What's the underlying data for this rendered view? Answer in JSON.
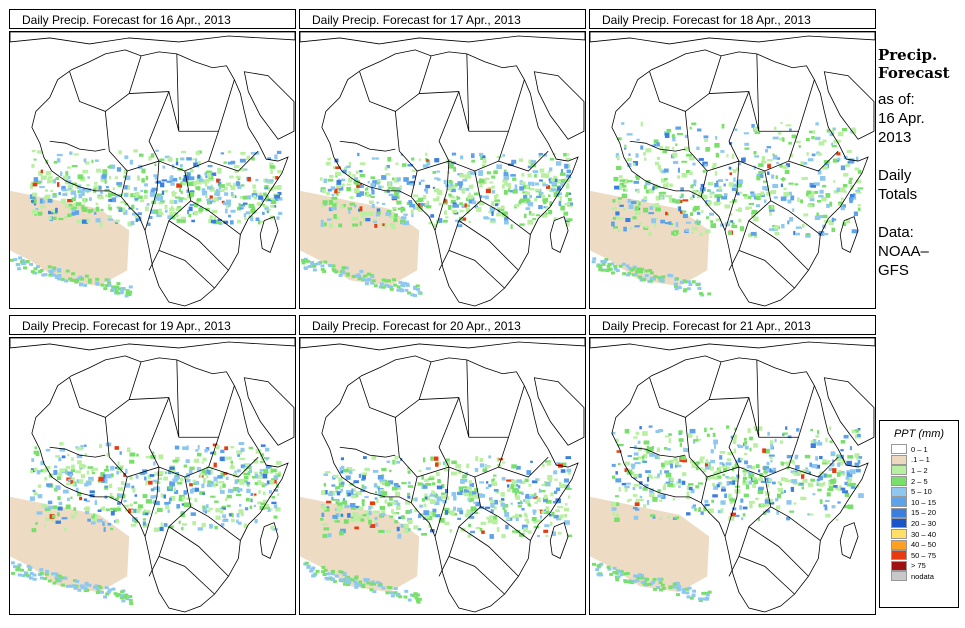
{
  "panels": [
    {
      "title": "Daily Precip. Forecast for  16 Apr., 2013"
    },
    {
      "title": "Daily Precip. Forecast for  17 Apr., 2013"
    },
    {
      "title": "Daily Precip. Forecast for  18 Apr., 2013"
    },
    {
      "title": "Daily Precip. Forecast for  19 Apr., 2013"
    },
    {
      "title": "Daily Precip. Forecast for  20 Apr., 2013"
    },
    {
      "title": "Daily Precip. Forecast for  21 Apr., 2013"
    }
  ],
  "side": {
    "title_line1": "Precip.",
    "title_line2": "Forecast",
    "asof_line1": "as of:",
    "asof_line2": "16 Apr.",
    "asof_line3": "2013",
    "totals_line1": "Daily",
    "totals_line2": "Totals",
    "data_line1": "Data:",
    "data_line2": "NOAA–",
    "data_line3": "GFS"
  },
  "legend": {
    "title": "PPT (mm)",
    "entries": [
      {
        "label": "0 – 1",
        "color": "#ffffff"
      },
      {
        "label": ".1 – 1",
        "color": "#ecd9c0"
      },
      {
        "label": "1 – 2",
        "color": "#b8efa0"
      },
      {
        "label": "2 – 5",
        "color": "#78e06a"
      },
      {
        "label": "5 – 10",
        "color": "#8ec8ee"
      },
      {
        "label": "10 – 15",
        "color": "#5ea2ea"
      },
      {
        "label": "15 – 20",
        "color": "#3a7ede"
      },
      {
        "label": "20 – 30",
        "color": "#1a56c8"
      },
      {
        "label": "30 – 40",
        "color": "#ffe066"
      },
      {
        "label": "40 – 50",
        "color": "#ffa020"
      },
      {
        "label": "50 – 75",
        "color": "#e83a10"
      },
      {
        "label": "> 75",
        "color": "#a01010"
      },
      {
        "label": "nodata",
        "color": "#c8c8c8"
      }
    ]
  }
}
